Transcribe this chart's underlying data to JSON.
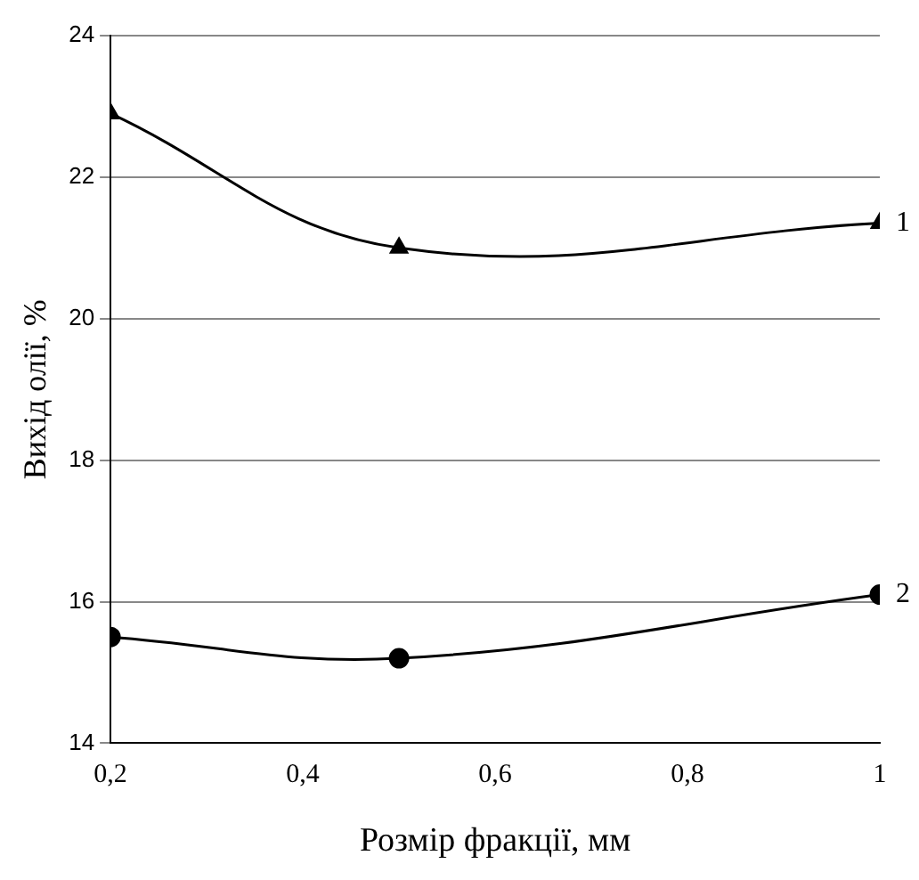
{
  "chart_data": {
    "type": "line",
    "xlabel": "Розмір фракції, мм",
    "ylabel": "Вихід олії, %",
    "x": [
      0.2,
      0.5,
      1
    ],
    "series": [
      {
        "name": "1",
        "color": "#000000",
        "marker": "triangle",
        "values": [
          22.9,
          21.0,
          21.35
        ]
      },
      {
        "name": "2",
        "color": "#000000",
        "marker": "circle",
        "values": [
          15.5,
          15.2,
          16.1
        ]
      }
    ],
    "xlim": [
      0.2,
      1
    ],
    "xticks": [
      {
        "value": 0.2,
        "label": "0,2"
      },
      {
        "value": 0.4,
        "label": "0,4"
      },
      {
        "value": 0.6,
        "label": "0,6"
      },
      {
        "value": 0.8,
        "label": "0,8"
      },
      {
        "value": 1,
        "label": "1"
      }
    ],
    "ylim": [
      14,
      24
    ],
    "yticks": [
      14,
      16,
      18,
      20,
      22,
      24
    ],
    "grid": "y",
    "legend": false
  }
}
